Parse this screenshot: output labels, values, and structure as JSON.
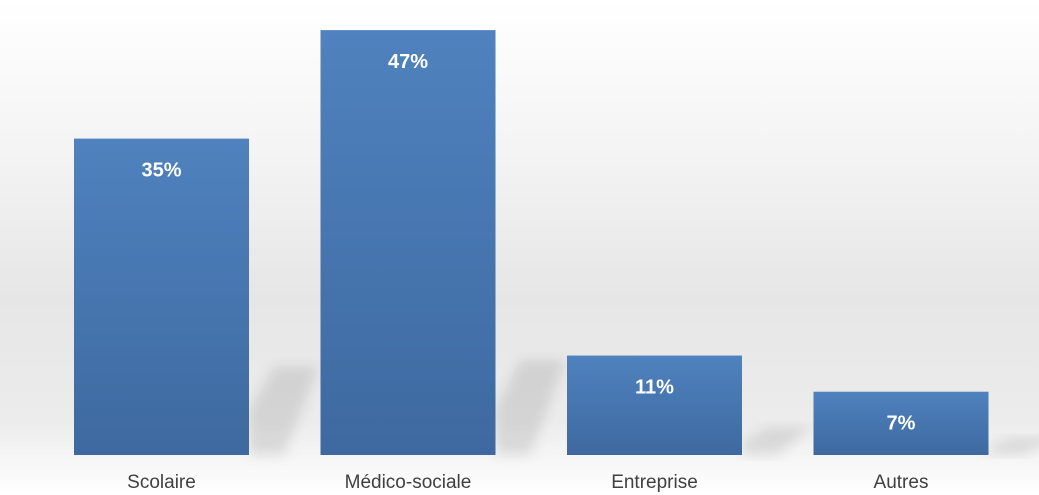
{
  "chart_data": {
    "type": "bar",
    "categories": [
      "Scolaire",
      "Médico-sociale",
      "Entreprise",
      "Autres"
    ],
    "values": [
      35,
      47,
      11,
      7
    ],
    "data_labels": [
      "35%",
      "47%",
      "11%",
      "7%"
    ],
    "ylim": [
      0,
      50
    ],
    "grid": false,
    "legend": false,
    "bar_color": "#4A7EBB"
  }
}
